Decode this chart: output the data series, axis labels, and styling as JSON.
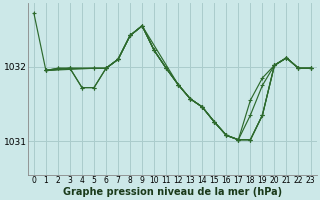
{
  "bg_color": "#cce8e8",
  "grid_color": "#aacccc",
  "line_color": "#2d6a2d",
  "xlabel": "Graphe pression niveau de la mer (hPa)",
  "xlabel_fontsize": 7,
  "tick_fontsize": 5.5,
  "ylabel_fontsize": 6.5,
  "xlim": [
    -0.5,
    23.5
  ],
  "ylim": [
    1030.55,
    1032.85
  ],
  "yticks": [
    1031,
    1032
  ],
  "xticks": [
    0,
    1,
    2,
    3,
    4,
    5,
    6,
    7,
    8,
    9,
    10,
    11,
    12,
    13,
    14,
    15,
    16,
    17,
    18,
    19,
    20,
    21,
    22,
    23
  ],
  "series": [
    {
      "x": [
        0,
        1,
        5,
        6,
        7,
        8,
        9,
        10,
        11,
        12,
        13,
        14,
        15,
        16,
        17,
        18,
        19,
        20,
        21,
        22,
        23
      ],
      "y": [
        1032.72,
        1031.95,
        1031.98,
        1031.98,
        1032.1,
        1032.42,
        1032.55,
        1032.22,
        1031.98,
        1031.76,
        1031.57,
        1031.46,
        1031.26,
        1031.08,
        1031.02,
        1031.02,
        1031.35,
        1032.02,
        1032.12,
        1031.98,
        1031.98
      ]
    },
    {
      "x": [
        1,
        2,
        3,
        4,
        5,
        6,
        7,
        8,
        9,
        10,
        11,
        12,
        13,
        14,
        15,
        16,
        17,
        18,
        19,
        20,
        21,
        22,
        23
      ],
      "y": [
        1031.95,
        1031.98,
        1031.98,
        1031.72,
        1031.72,
        1031.98,
        1032.1,
        1032.42,
        1032.55,
        1032.22,
        1031.98,
        1031.76,
        1031.57,
        1031.46,
        1031.26,
        1031.08,
        1031.02,
        1031.02,
        1031.35,
        1032.02,
        1032.12,
        1031.98,
        1031.98
      ]
    },
    {
      "x": [
        1,
        3,
        5,
        6,
        7,
        8,
        9,
        10,
        11,
        12,
        13,
        14,
        15,
        16,
        17,
        18,
        19,
        20,
        21,
        22,
        23
      ],
      "y": [
        1031.95,
        1031.98,
        1031.98,
        1031.98,
        1032.1,
        1032.42,
        1032.55,
        1032.22,
        1031.98,
        1031.76,
        1031.57,
        1031.46,
        1031.26,
        1031.08,
        1031.02,
        1031.55,
        1031.85,
        1032.02,
        1032.12,
        1031.98,
        1031.98
      ]
    },
    {
      "x": [
        1,
        3,
        4,
        5,
        6,
        7,
        8,
        9,
        10,
        11,
        12,
        13,
        14,
        15,
        16,
        17,
        18,
        19,
        20,
        21,
        22,
        23
      ],
      "y": [
        1031.95,
        1031.98,
        1031.72,
        1031.72,
        1031.98,
        1032.1,
        1032.42,
        1032.55,
        1032.22,
        1031.98,
        1031.76,
        1031.57,
        1031.46,
        1031.26,
        1031.08,
        1031.02,
        1031.02,
        1031.35,
        1032.02,
        1032.12,
        1031.98,
        1031.98
      ]
    },
    {
      "x": [
        1,
        2,
        3,
        6,
        7,
        8,
        9,
        12,
        13,
        14,
        15,
        16,
        17,
        18,
        19,
        20,
        21,
        22,
        23
      ],
      "y": [
        1031.95,
        1031.98,
        1031.98,
        1031.98,
        1032.1,
        1032.42,
        1032.55,
        1031.76,
        1031.57,
        1031.46,
        1031.26,
        1031.08,
        1031.02,
        1031.35,
        1031.75,
        1032.02,
        1032.12,
        1031.98,
        1031.98
      ]
    }
  ]
}
